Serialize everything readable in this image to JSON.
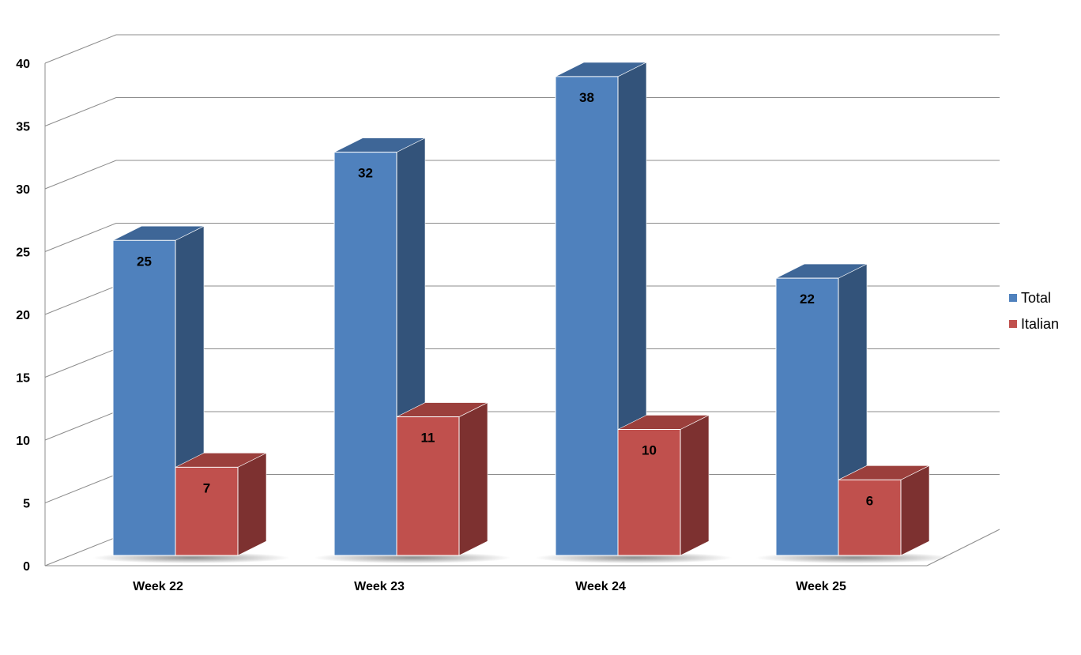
{
  "chart_data": {
    "type": "bar",
    "categories": [
      "Week 22",
      "Week 23",
      "Week 24",
      "Week 25"
    ],
    "series": [
      {
        "name": "Total",
        "values": [
          25,
          32,
          38,
          22
        ],
        "color": "#4F81BD",
        "side_color": "#33537A",
        "top_color": "#3E6697"
      },
      {
        "name": "Italian",
        "values": [
          7,
          11,
          10,
          6
        ],
        "color": "#C0504D",
        "side_color": "#7D3130",
        "top_color": "#9B3F3C"
      }
    ],
    "y_ticks": [
      "0",
      "5",
      "10",
      "15",
      "20",
      "25",
      "30",
      "35",
      "40"
    ],
    "ylim": [
      0,
      40
    ],
    "grid": true,
    "legend_position": "right",
    "data_labels": true,
    "style": "3d-clustered-column"
  }
}
